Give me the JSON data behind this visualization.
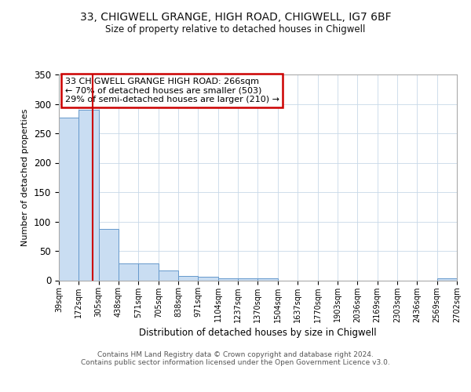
{
  "title1": "33, CHIGWELL GRANGE, HIGH ROAD, CHIGWELL, IG7 6BF",
  "title2": "Size of property relative to detached houses in Chigwell",
  "xlabel": "Distribution of detached houses by size in Chigwell",
  "ylabel": "Number of detached properties",
  "bin_edges": [
    39,
    172,
    305,
    438,
    571,
    705,
    838,
    971,
    1104,
    1237,
    1370,
    1504,
    1637,
    1770,
    1903,
    2036,
    2169,
    2303,
    2436,
    2569,
    2702
  ],
  "bar_heights": [
    277,
    290,
    88,
    29,
    29,
    17,
    8,
    6,
    3,
    4,
    4,
    0,
    0,
    0,
    0,
    0,
    0,
    0,
    0,
    3,
    0
  ],
  "bar_color": "#c9ddf2",
  "bar_edge_color": "#6699cc",
  "property_size": 266,
  "property_line_color": "#cc0000",
  "ylim": [
    0,
    350
  ],
  "yticks": [
    0,
    50,
    100,
    150,
    200,
    250,
    300,
    350
  ],
  "annotation_text": "33 CHIGWELL GRANGE HIGH ROAD: 266sqm\n← 70% of detached houses are smaller (503)\n29% of semi-detached houses are larger (210) →",
  "annotation_box_color": "#ffffff",
  "annotation_box_edge_color": "#cc0000",
  "footer_text": "Contains HM Land Registry data © Crown copyright and database right 2024.\nContains public sector information licensed under the Open Government Licence v3.0.",
  "background_color": "#ffffff",
  "grid_color": "#c8d8e8"
}
